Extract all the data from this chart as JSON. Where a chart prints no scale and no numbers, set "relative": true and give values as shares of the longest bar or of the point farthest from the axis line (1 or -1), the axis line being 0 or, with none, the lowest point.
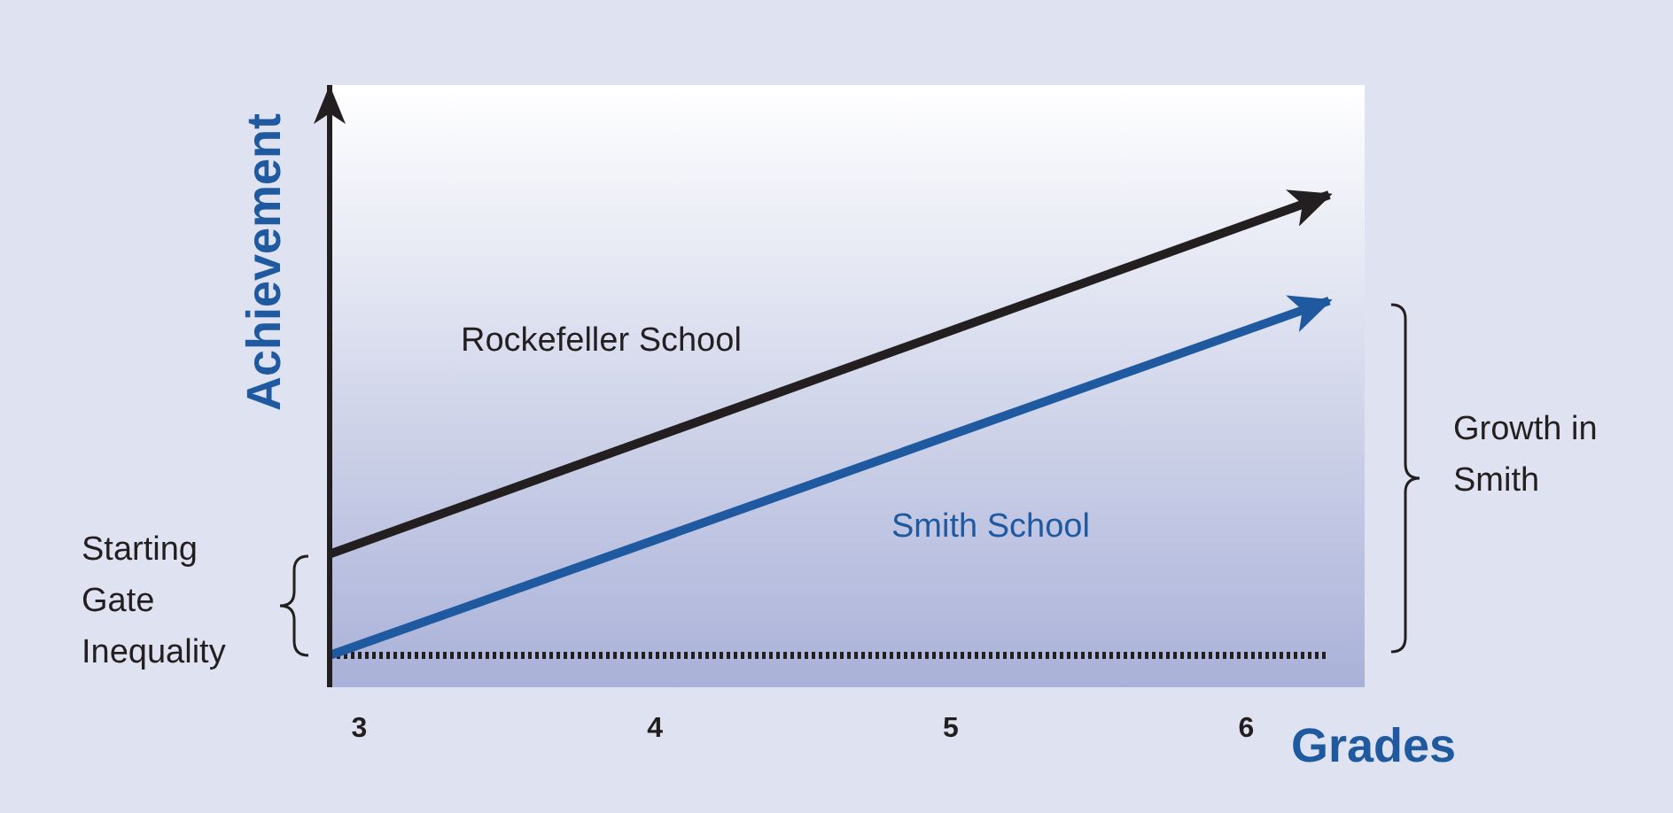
{
  "chart_data": {
    "type": "line",
    "relative": true,
    "xlabel": "Grades",
    "ylabel": "Achievement",
    "xlim": [
      2.9,
      6.4
    ],
    "x": [
      2.9,
      6.28
    ],
    "xticks": [
      3,
      4,
      5,
      6
    ],
    "grid": false,
    "legend": false,
    "marker": "none",
    "line_style": "solid",
    "series": [
      {
        "name": "Rockefeller School",
        "color": "#231f20",
        "values": [
          0.22,
          1
        ]
      },
      {
        "name": "Smith School",
        "color": "#1f5aa0",
        "values": [
          0,
          0.77
        ]
      }
    ],
    "ref_lines": [
      {
        "axis": "y",
        "value": 0,
        "line_style": "dotted",
        "color": "#231f20"
      }
    ],
    "annotations": [
      "Starting Gate Inequality",
      "Growth in Smith"
    ]
  }
}
